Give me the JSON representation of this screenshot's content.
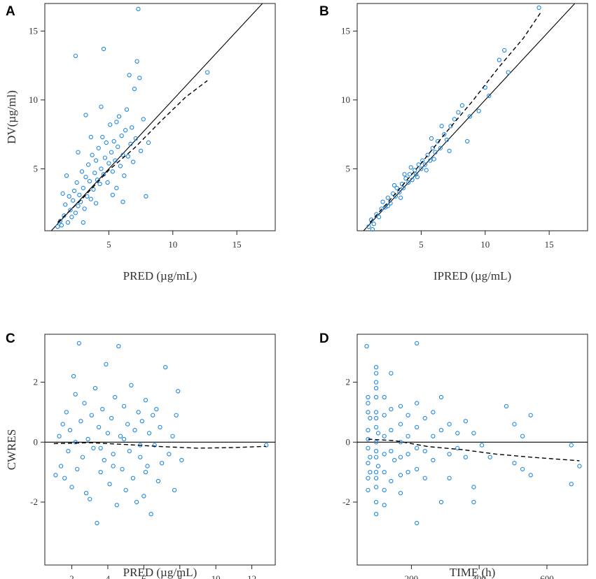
{
  "chart_data": [
    {
      "panel": "A",
      "type": "scatter",
      "xlabel": "PRED (µg/mL)",
      "ylabel": "DV(µg/ml)",
      "xlim": [
        0,
        18
      ],
      "ylim": [
        0.5,
        17
      ],
      "xticks": [
        5,
        10,
        15
      ],
      "yticks": [
        5,
        10,
        15
      ],
      "reference_line": "identity",
      "points": [
        [
          1.0,
          0.8
        ],
        [
          1.2,
          1.2
        ],
        [
          1.3,
          0.9
        ],
        [
          1.5,
          1.6
        ],
        [
          1.6,
          2.4
        ],
        [
          1.8,
          1.1
        ],
        [
          1.9,
          3.0
        ],
        [
          2.0,
          2.0
        ],
        [
          2.1,
          1.5
        ],
        [
          2.2,
          2.7
        ],
        [
          2.3,
          3.4
        ],
        [
          2.4,
          1.8
        ],
        [
          2.5,
          4.0
        ],
        [
          2.6,
          2.3
        ],
        [
          2.7,
          3.1
        ],
        [
          2.8,
          2.6
        ],
        [
          2.9,
          4.8
        ],
        [
          3.0,
          3.6
        ],
        [
          3.1,
          2.1
        ],
        [
          3.2,
          4.4
        ],
        [
          3.3,
          3.0
        ],
        [
          3.4,
          5.3
        ],
        [
          3.5,
          4.1
        ],
        [
          3.6,
          2.8
        ],
        [
          3.7,
          6.0
        ],
        [
          3.8,
          3.5
        ],
        [
          3.9,
          4.7
        ],
        [
          4.0,
          5.6
        ],
        [
          4.1,
          4.2
        ],
        [
          4.2,
          6.5
        ],
        [
          4.3,
          3.9
        ],
        [
          4.4,
          5.0
        ],
        [
          4.5,
          7.3
        ],
        [
          4.6,
          4.6
        ],
        [
          4.7,
          5.8
        ],
        [
          4.8,
          6.9
        ],
        [
          4.9,
          4.0
        ],
        [
          5.0,
          5.4
        ],
        [
          5.1,
          8.2
        ],
        [
          5.2,
          6.2
        ],
        [
          5.3,
          4.8
        ],
        [
          5.4,
          7.0
        ],
        [
          5.5,
          5.6
        ],
        [
          5.6,
          3.6
        ],
        [
          5.7,
          6.6
        ],
        [
          5.8,
          8.8
        ],
        [
          5.9,
          5.2
        ],
        [
          6.0,
          7.4
        ],
        [
          6.1,
          6.0
        ],
        [
          6.2,
          4.5
        ],
        [
          6.3,
          7.8
        ],
        [
          6.4,
          9.3
        ],
        [
          6.5,
          5.9
        ],
        [
          6.6,
          11.8
        ],
        [
          6.7,
          6.8
        ],
        [
          6.8,
          8.0
        ],
        [
          6.9,
          5.5
        ],
        [
          7.0,
          10.8
        ],
        [
          7.1,
          7.2
        ],
        [
          7.2,
          12.8
        ],
        [
          7.3,
          16.6
        ],
        [
          7.5,
          6.3
        ],
        [
          7.7,
          8.6
        ],
        [
          7.9,
          3.0
        ],
        [
          8.1,
          6.9
        ],
        [
          2.4,
          13.2
        ],
        [
          4.6,
          13.7
        ],
        [
          12.7,
          12.0
        ],
        [
          1.4,
          3.2
        ],
        [
          2.6,
          6.2
        ],
        [
          3.2,
          8.9
        ],
        [
          4.4,
          9.5
        ],
        [
          5.3,
          3.1
        ],
        [
          6.1,
          2.6
        ],
        [
          4.0,
          2.5
        ],
        [
          3.0,
          1.1
        ],
        [
          1.7,
          4.5
        ],
        [
          5.6,
          8.4
        ],
        [
          7.4,
          11.6
        ],
        [
          3.6,
          7.3
        ]
      ],
      "smooth": [
        [
          1,
          1.1
        ],
        [
          3,
          2.9
        ],
        [
          5,
          4.9
        ],
        [
          7,
          6.5
        ],
        [
          9,
          8.4
        ],
        [
          11,
          10.2
        ],
        [
          12.7,
          11.4
        ]
      ]
    },
    {
      "panel": "B",
      "type": "scatter",
      "xlabel": "IPRED (µg/mL)",
      "ylabel": "",
      "xlim": [
        0,
        18
      ],
      "ylim": [
        0.5,
        17
      ],
      "xticks": [
        5,
        10,
        15
      ],
      "yticks": [
        5,
        10,
        15
      ],
      "reference_line": "identity",
      "points": [
        [
          0.9,
          0.8
        ],
        [
          1.1,
          1.3
        ],
        [
          1.3,
          1.0
        ],
        [
          1.5,
          1.7
        ],
        [
          1.7,
          1.5
        ],
        [
          1.9,
          2.1
        ],
        [
          2.0,
          2.6
        ],
        [
          2.2,
          2.2
        ],
        [
          2.4,
          2.9
        ],
        [
          2.6,
          2.5
        ],
        [
          2.8,
          3.2
        ],
        [
          3.0,
          3.0
        ],
        [
          3.1,
          3.6
        ],
        [
          3.3,
          3.3
        ],
        [
          3.5,
          3.9
        ],
        [
          3.6,
          3.6
        ],
        [
          3.8,
          4.3
        ],
        [
          4.0,
          4.0
        ],
        [
          4.1,
          4.6
        ],
        [
          4.3,
          4.2
        ],
        [
          4.5,
          4.9
        ],
        [
          4.6,
          4.6
        ],
        [
          4.8,
          5.3
        ],
        [
          5.0,
          5.0
        ],
        [
          5.1,
          5.6
        ],
        [
          5.3,
          5.3
        ],
        [
          5.5,
          6.0
        ],
        [
          5.7,
          5.6
        ],
        [
          5.9,
          6.5
        ],
        [
          6.1,
          6.2
        ],
        [
          6.3,
          7.0
        ],
        [
          6.5,
          6.5
        ],
        [
          6.8,
          7.5
        ],
        [
          7.0,
          7.1
        ],
        [
          7.3,
          8.1
        ],
        [
          7.6,
          8.6
        ],
        [
          7.9,
          9.1
        ],
        [
          8.2,
          9.6
        ],
        [
          8.8,
          8.8
        ],
        [
          8.6,
          7.0
        ],
        [
          10.0,
          10.9
        ],
        [
          10.3,
          10.3
        ],
        [
          11.1,
          12.9
        ],
        [
          11.5,
          13.6
        ],
        [
          11.8,
          12.0
        ],
        [
          14.2,
          16.7
        ],
        [
          6.6,
          8.1
        ],
        [
          5.4,
          4.9
        ],
        [
          4.2,
          5.1
        ],
        [
          3.4,
          2.9
        ],
        [
          2.4,
          2.3
        ],
        [
          7.2,
          6.3
        ],
        [
          6.0,
          5.7
        ],
        [
          4.7,
          4.4
        ],
        [
          9.5,
          9.2
        ],
        [
          1.2,
          0.6
        ],
        [
          3.7,
          4.6
        ],
        [
          5.8,
          7.2
        ],
        [
          2.9,
          3.8
        ]
      ],
      "smooth": [
        [
          1,
          1.1
        ],
        [
          3,
          3.2
        ],
        [
          5,
          5.4
        ],
        [
          7,
          7.7
        ],
        [
          9,
          9.9
        ],
        [
          11,
          12.3
        ],
        [
          13,
          14.5
        ],
        [
          14.3,
          16.3
        ]
      ]
    },
    {
      "panel": "C",
      "type": "scatter",
      "xlabel": "PRED (µg/mL)",
      "ylabel": "CWRES",
      "xlim": [
        0.5,
        13.3
      ],
      "ylim": [
        -4.1,
        3.6
      ],
      "xticks": [
        2,
        4,
        6,
        8,
        10,
        12
      ],
      "yticks": [
        -2,
        0,
        2
      ],
      "reference_line": "zero",
      "points": [
        [
          1.1,
          -1.1
        ],
        [
          1.3,
          0.2
        ],
        [
          1.4,
          -0.8
        ],
        [
          1.5,
          0.6
        ],
        [
          1.6,
          -1.2
        ],
        [
          1.7,
          1.0
        ],
        [
          1.8,
          -0.3
        ],
        [
          1.9,
          0.4
        ],
        [
          2.0,
          -1.5
        ],
        [
          2.1,
          2.2
        ],
        [
          2.2,
          0.0
        ],
        [
          2.3,
          -0.9
        ],
        [
          2.4,
          3.3
        ],
        [
          2.5,
          0.7
        ],
        [
          2.6,
          -0.5
        ],
        [
          2.7,
          1.3
        ],
        [
          2.8,
          -1.7
        ],
        [
          2.9,
          0.1
        ],
        [
          3.0,
          -1.9
        ],
        [
          3.1,
          0.9
        ],
        [
          3.2,
          -0.2
        ],
        [
          3.3,
          1.8
        ],
        [
          3.4,
          -2.7
        ],
        [
          3.5,
          0.5
        ],
        [
          3.6,
          -1.0
        ],
        [
          3.7,
          1.1
        ],
        [
          3.8,
          -0.6
        ],
        [
          3.9,
          2.6
        ],
        [
          4.0,
          0.3
        ],
        [
          4.1,
          -1.4
        ],
        [
          4.2,
          0.8
        ],
        [
          4.3,
          -0.4
        ],
        [
          4.4,
          1.5
        ],
        [
          4.5,
          -2.1
        ],
        [
          4.6,
          3.2
        ],
        [
          4.7,
          0.2
        ],
        [
          4.8,
          -0.9
        ],
        [
          4.9,
          1.2
        ],
        [
          5.0,
          -1.6
        ],
        [
          5.1,
          0.6
        ],
        [
          5.2,
          -0.3
        ],
        [
          5.3,
          1.9
        ],
        [
          5.4,
          -1.2
        ],
        [
          5.5,
          0.4
        ],
        [
          5.6,
          -2.0
        ],
        [
          5.7,
          1.0
        ],
        [
          5.8,
          -0.5
        ],
        [
          5.9,
          0.7
        ],
        [
          6.0,
          -1.8
        ],
        [
          6.1,
          1.4
        ],
        [
          6.2,
          -0.8
        ],
        [
          6.3,
          0.3
        ],
        [
          6.4,
          -2.4
        ],
        [
          6.5,
          0.9
        ],
        [
          6.6,
          -0.1
        ],
        [
          6.7,
          1.1
        ],
        [
          6.8,
          -1.3
        ],
        [
          6.9,
          0.5
        ],
        [
          7.0,
          -0.7
        ],
        [
          7.2,
          2.5
        ],
        [
          7.4,
          -0.4
        ],
        [
          7.6,
          0.2
        ],
        [
          7.7,
          -1.6
        ],
        [
          7.8,
          0.9
        ],
        [
          7.9,
          1.7
        ],
        [
          8.1,
          -0.6
        ],
        [
          12.8,
          -0.1
        ],
        [
          2.2,
          1.6
        ],
        [
          3.6,
          -0.2
        ],
        [
          4.9,
          0.1
        ],
        [
          5.8,
          -0.1
        ],
        [
          6.1,
          -1.0
        ],
        [
          4.3,
          -0.8
        ]
      ],
      "smooth": [
        [
          1,
          -0.05
        ],
        [
          3,
          -0.02
        ],
        [
          5,
          -0.08
        ],
        [
          7,
          -0.15
        ],
        [
          9,
          -0.2
        ],
        [
          11,
          -0.18
        ],
        [
          12.8,
          -0.14
        ]
      ]
    },
    {
      "panel": "D",
      "type": "scatter",
      "xlabel": "TIME (h)",
      "ylabel": "",
      "xlim": [
        40,
        720
      ],
      "ylim": [
        -4.1,
        3.6
      ],
      "xticks": [
        200,
        400,
        600
      ],
      "yticks": [
        -2,
        0,
        2
      ],
      "reference_line": "zero",
      "points": [
        [
          68,
          3.2
        ],
        [
          72,
          1.5
        ],
        [
          72,
          1.0
        ],
        [
          72,
          0.4
        ],
        [
          72,
          -0.2
        ],
        [
          72,
          -0.7
        ],
        [
          72,
          -1.2
        ],
        [
          72,
          -1.6
        ],
        [
          72,
          1.3
        ],
        [
          72,
          0.1
        ],
        [
          78,
          -0.5
        ],
        [
          78,
          0.8
        ],
        [
          78,
          -1.0
        ],
        [
          96,
          2.5
        ],
        [
          96,
          2.0
        ],
        [
          96,
          1.5
        ],
        [
          96,
          1.0
        ],
        [
          96,
          0.5
        ],
        [
          96,
          0.0
        ],
        [
          96,
          -0.5
        ],
        [
          96,
          -1.0
        ],
        [
          96,
          -1.5
        ],
        [
          96,
          -2.0
        ],
        [
          96,
          -2.4
        ],
        [
          96,
          2.3
        ],
        [
          96,
          1.8
        ],
        [
          96,
          0.8
        ],
        [
          96,
          -0.3
        ],
        [
          96,
          -1.2
        ],
        [
          102,
          0.3
        ],
        [
          102,
          -0.8
        ],
        [
          120,
          1.5
        ],
        [
          120,
          0.9
        ],
        [
          120,
          0.2
        ],
        [
          120,
          -0.4
        ],
        [
          120,
          -1.0
        ],
        [
          120,
          -1.6
        ],
        [
          120,
          -2.1
        ],
        [
          140,
          2.3
        ],
        [
          140,
          1.1
        ],
        [
          140,
          0.4
        ],
        [
          140,
          -0.3
        ],
        [
          140,
          -1.3
        ],
        [
          150,
          -0.6
        ],
        [
          168,
          1.2
        ],
        [
          168,
          0.6
        ],
        [
          168,
          0.0
        ],
        [
          168,
          -0.5
        ],
        [
          168,
          -1.1
        ],
        [
          168,
          -1.7
        ],
        [
          190,
          0.9
        ],
        [
          190,
          0.2
        ],
        [
          190,
          -0.4
        ],
        [
          190,
          -1.0
        ],
        [
          216,
          3.3
        ],
        [
          216,
          1.3
        ],
        [
          216,
          0.5
        ],
        [
          216,
          -0.2
        ],
        [
          216,
          -0.9
        ],
        [
          216,
          -2.7
        ],
        [
          240,
          0.8
        ],
        [
          240,
          -0.3
        ],
        [
          240,
          -1.2
        ],
        [
          264,
          1.0
        ],
        [
          264,
          0.2
        ],
        [
          264,
          -0.6
        ],
        [
          288,
          1.5
        ],
        [
          288,
          0.4
        ],
        [
          288,
          -2.0
        ],
        [
          312,
          0.6
        ],
        [
          312,
          -0.4
        ],
        [
          312,
          -1.2
        ],
        [
          336,
          0.3
        ],
        [
          336,
          -0.2
        ],
        [
          360,
          0.7
        ],
        [
          360,
          -0.5
        ],
        [
          384,
          -1.5
        ],
        [
          384,
          -2.0
        ],
        [
          384,
          0.3
        ],
        [
          408,
          -0.1
        ],
        [
          432,
          -0.5
        ],
        [
          480,
          1.2
        ],
        [
          504,
          0.6
        ],
        [
          504,
          -0.7
        ],
        [
          528,
          -0.9
        ],
        [
          528,
          0.2
        ],
        [
          552,
          0.9
        ],
        [
          552,
          -1.1
        ],
        [
          672,
          -0.1
        ],
        [
          672,
          -1.4
        ],
        [
          696,
          -0.8
        ]
      ],
      "smooth": [
        [
          72,
          0.1
        ],
        [
          150,
          0.05
        ],
        [
          250,
          -0.15
        ],
        [
          350,
          -0.25
        ],
        [
          450,
          -0.4
        ],
        [
          550,
          -0.5
        ],
        [
          696,
          -0.62
        ]
      ]
    }
  ]
}
